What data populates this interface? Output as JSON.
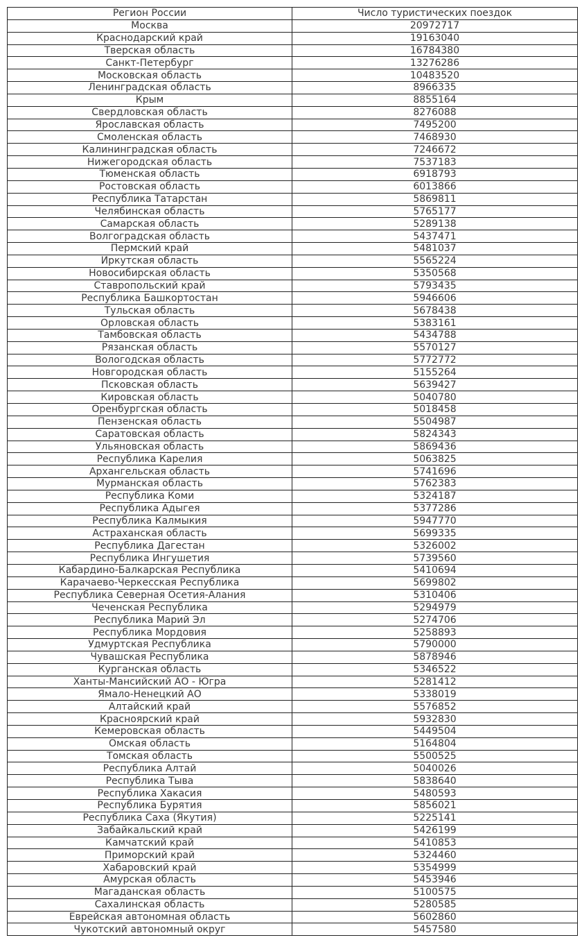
{
  "chart_data": {
    "type": "table",
    "columns": [
      "Регион России",
      "Число туристических поездок"
    ],
    "rows": [
      [
        "Москва",
        "20972717"
      ],
      [
        "Краснодарский край",
        "19163040"
      ],
      [
        "Тверская область",
        "16784380"
      ],
      [
        "Санкт-Петербург",
        "13276286"
      ],
      [
        "Московская область",
        "10483520"
      ],
      [
        "Ленинградская область",
        "8966335"
      ],
      [
        "Крым",
        "8855164"
      ],
      [
        "Свердловская область",
        "8276088"
      ],
      [
        "Ярославская область",
        "7495200"
      ],
      [
        "Смоленская область",
        "7468930"
      ],
      [
        "Калининградская область",
        "7246672"
      ],
      [
        "Нижегородская область",
        "7537183"
      ],
      [
        "Тюменская область",
        "6918793"
      ],
      [
        "Ростовская область",
        "6013866"
      ],
      [
        "Республика Татарстан",
        "5869811"
      ],
      [
        "Челябинская область",
        "5765177"
      ],
      [
        "Самарская область",
        "5289138"
      ],
      [
        "Волгоградская область",
        "5437471"
      ],
      [
        "Пермский край",
        "5481037"
      ],
      [
        "Иркутская область",
        "5565224"
      ],
      [
        "Новосибирская область",
        "5350568"
      ],
      [
        "Ставропольский край",
        "5793435"
      ],
      [
        "Республика Башкортостан",
        "5946606"
      ],
      [
        "Тульская область",
        "5678438"
      ],
      [
        "Орловская область",
        "5383161"
      ],
      [
        "Тамбовская область",
        "5434788"
      ],
      [
        "Рязанская область",
        "5570127"
      ],
      [
        "Вологодская область",
        "5772772"
      ],
      [
        "Новгородская область",
        "5155264"
      ],
      [
        "Псковская область",
        "5639427"
      ],
      [
        "Кировская область",
        "5040780"
      ],
      [
        "Оренбургская область",
        "5018458"
      ],
      [
        "Пензенская область",
        "5504987"
      ],
      [
        "Саратовская область",
        "5824343"
      ],
      [
        "Ульяновская область",
        "5869436"
      ],
      [
        "Республика Карелия",
        "5063825"
      ],
      [
        "Архангельская область",
        "5741696"
      ],
      [
        "Мурманская область",
        "5762383"
      ],
      [
        "Республика Коми",
        "5324187"
      ],
      [
        "Республика Адыгея",
        "5377286"
      ],
      [
        "Республика Калмыкия",
        "5947770"
      ],
      [
        "Астраханская область",
        "5699335"
      ],
      [
        "Республика Дагестан",
        "5326002"
      ],
      [
        "Республика Ингушетия",
        "5739560"
      ],
      [
        "Кабардино-Балкарская Республика",
        "5410694"
      ],
      [
        "Карачаево-Черкесская Республика",
        "5699802"
      ],
      [
        "Республика Северная Осетия-Алания",
        "5310406"
      ],
      [
        "Чеченская Республика",
        "5294979"
      ],
      [
        "Республика Марий Эл",
        "5274706"
      ],
      [
        "Республика Мордовия",
        "5258893"
      ],
      [
        "Удмуртская Республика",
        "5790000"
      ],
      [
        "Чувашская Республика",
        "5878946"
      ],
      [
        "Курганская область",
        "5346522"
      ],
      [
        "Ханты-Мансийский АО - Югра",
        "5281412"
      ],
      [
        "Ямало-Ненецкий АО",
        "5338019"
      ],
      [
        "Алтайский край",
        "5576852"
      ],
      [
        "Красноярский край",
        "5932830"
      ],
      [
        "Кемеровская область",
        "5449504"
      ],
      [
        "Омская область",
        "5164804"
      ],
      [
        "Томская область",
        "5500525"
      ],
      [
        "Республика Алтай",
        "5040026"
      ],
      [
        "Республика Тыва",
        "5838640"
      ],
      [
        "Республика Хакасия",
        "5480593"
      ],
      [
        "Республика Бурятия",
        "5856021"
      ],
      [
        "Республика Саха (Якутия)",
        "5225141"
      ],
      [
        "Забайкальский край",
        "5426199"
      ],
      [
        "Камчатский край",
        "5410853"
      ],
      [
        "Приморский край",
        "5324460"
      ],
      [
        "Хабаровский край",
        "5354999"
      ],
      [
        "Амурская область",
        "5453946"
      ],
      [
        "Магаданская область",
        "5100575"
      ],
      [
        "Сахалинская область",
        "5280585"
      ],
      [
        "Еврейская автономная область",
        "5602860"
      ],
      [
        "Чукотский автономный округ",
        "5457580"
      ]
    ]
  }
}
